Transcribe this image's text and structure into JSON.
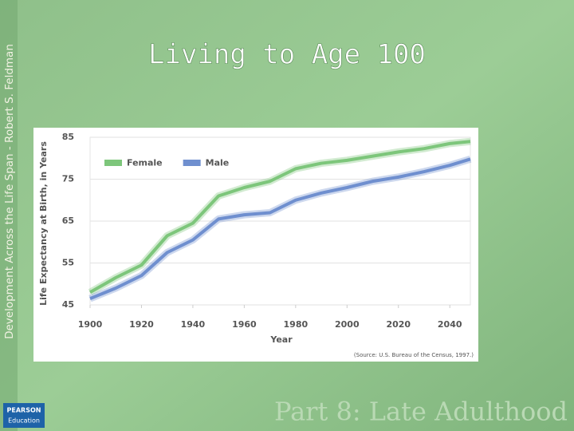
{
  "slide": {
    "title": "Living to Age 100",
    "sidebar": "Development Across the Life Span - Robert S. Feldman",
    "footer": "Part 8: Late Adulthood",
    "logo_top": "PEARSON",
    "logo_bottom": "Education"
  },
  "chart_data": {
    "type": "line",
    "x": [
      1900,
      1910,
      1920,
      1930,
      1940,
      1950,
      1960,
      1970,
      1980,
      1990,
      2000,
      2010,
      2020,
      2030,
      2040,
      2048
    ],
    "series": [
      {
        "name": "Female",
        "color": "#7dc67b",
        "values": [
          48,
          51.5,
          54.5,
          61.5,
          64.5,
          71,
          73,
          74.5,
          77.5,
          78.8,
          79.5,
          80.5,
          81.5,
          82.3,
          83.5,
          84
        ]
      },
      {
        "name": "Male",
        "color": "#6f8fcf",
        "values": [
          46.5,
          49,
          52,
          57.5,
          60.5,
          65.5,
          66.5,
          67,
          70,
          71.7,
          73,
          74.5,
          75.5,
          76.8,
          78.3,
          79.8
        ]
      }
    ],
    "xlim": [
      1900,
      2048
    ],
    "ylim": [
      45,
      85
    ],
    "xticks": [
      1900,
      1920,
      1940,
      1960,
      1980,
      2000,
      2020,
      2040
    ],
    "yticks": [
      45,
      55,
      65,
      75,
      85
    ],
    "xlabel": "Year",
    "ylabel": "Life Expectancy at Birth, in Years",
    "source": "(Source: U.S. Bureau of the Census, 1997.)",
    "grid": true,
    "legend": "top-left"
  }
}
